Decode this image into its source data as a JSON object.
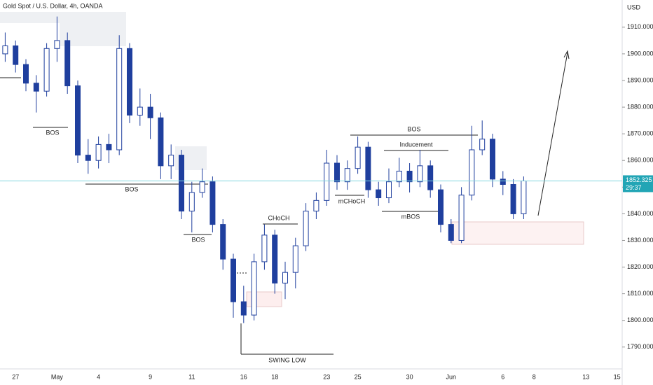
{
  "chart_data": {
    "type": "candlestick",
    "title": "Gold Spot / U.S. Dollar, 4h, OANDA",
    "y_axis_label": "USD",
    "countdown": "29:37",
    "categories": [
      null,
      "27",
      null,
      null,
      null,
      "May",
      null,
      null,
      null,
      "4",
      null,
      null,
      null,
      null,
      "9",
      null,
      null,
      null,
      "11",
      null,
      null,
      null,
      null,
      "16",
      null,
      null,
      "18",
      null,
      null,
      null,
      null,
      "23",
      null,
      null,
      "25",
      null,
      null,
      null,
      null,
      "30",
      null,
      null,
      null,
      "Jun",
      null,
      null,
      null,
      null,
      "6",
      null,
      null,
      "8",
      null,
      null,
      null,
      null,
      "13",
      null,
      null,
      "15"
    ],
    "open": [
      1900,
      1903,
      1896,
      1889,
      1886,
      1902,
      1905,
      1888,
      1862,
      1860,
      1866,
      1864,
      1902,
      1877,
      1880,
      1876,
      1858,
      1862,
      1841,
      1848,
      1852,
      1836,
      1823,
      1807,
      1802,
      1822,
      1832,
      1814,
      1818,
      1828,
      1841,
      1845,
      1859,
      1852,
      1857,
      1865,
      1849,
      1846,
      1852,
      1856,
      1852,
      1858,
      1849,
      1836,
      1830,
      1847,
      1864,
      1868,
      1853,
      1851,
      1840,
      null,
      null,
      null,
      null,
      null,
      null,
      null,
      null,
      null
    ],
    "high": [
      1908,
      1905,
      1898,
      1892,
      1904,
      1914,
      1908,
      1890,
      1868,
      1869,
      1870,
      1907,
      1904,
      1887,
      1885,
      1878,
      1866,
      1864,
      1852,
      1857,
      1854,
      1838,
      1825,
      1813,
      1825,
      1836,
      1834,
      1822,
      1831,
      1844,
      1848,
      1864,
      1862,
      1860,
      1869,
      1867,
      1852,
      1857,
      1861,
      1859,
      1864,
      1860,
      1851,
      1838,
      1850,
      1873,
      1875,
      1870,
      1856,
      1853,
      1854,
      null,
      null,
      null,
      null,
      null,
      null,
      null,
      null,
      null
    ],
    "low": [
      1897,
      1893,
      1886,
      1878,
      1884,
      1897,
      1885,
      1859,
      1855,
      1857,
      1859,
      1862,
      1874,
      1873,
      1868,
      1853,
      1853,
      1838,
      1833,
      1846,
      1833,
      1819,
      1801,
      1799,
      1800,
      1819,
      1810,
      1808,
      1812,
      1826,
      1838,
      1843,
      1849,
      1849,
      1855,
      1846,
      1843,
      1844,
      1850,
      1848,
      1850,
      1846,
      1833,
      1829,
      1829,
      1845,
      1862,
      1850,
      1847,
      1838,
      1838,
      null,
      null,
      null,
      null,
      null,
      null,
      null,
      null,
      null
    ],
    "close": [
      1903,
      1896,
      1889,
      1886,
      1902,
      1905,
      1888,
      1862,
      1860,
      1866,
      1864,
      1902,
      1877,
      1880,
      1876,
      1858,
      1862,
      1841,
      1848,
      1852,
      1836,
      1823,
      1807,
      1802,
      1822,
      1832,
      1814,
      1818,
      1828,
      1841,
      1845,
      1859,
      1852,
      1857,
      1865,
      1849,
      1846,
      1852,
      1856,
      1852,
      1858,
      1849,
      1836,
      1830,
      1847,
      1864,
      1868,
      1853,
      1851,
      1840,
      1852.325,
      null,
      null,
      null,
      null,
      null,
      null,
      null,
      null,
      null
    ],
    "up_color": "#ffffff",
    "down_color": "#1f3f9e",
    "wick_color": "#1f3f9e",
    "price_line_color": "#7fd6dd",
    "price_tag_color": "#22a5b5",
    "ylim": [
      1781.8,
      1920.2
    ],
    "yticks": [
      {
        "value": 1790,
        "label": "1790.000"
      },
      {
        "value": 1800,
        "label": "1800.000"
      },
      {
        "value": 1810,
        "label": "1810.000"
      },
      {
        "value": 1820,
        "label": "1820.000"
      },
      {
        "value": 1830,
        "label": "1830.000"
      },
      {
        "value": 1840,
        "label": "1840.000"
      },
      {
        "value": 1850,
        "label": "1850.000"
      },
      {
        "value": 1860,
        "label": "1860.000"
      },
      {
        "value": 1870,
        "label": "1870.000"
      },
      {
        "value": 1880,
        "label": "1880.000"
      },
      {
        "value": 1890,
        "label": "1890.000"
      },
      {
        "value": 1900,
        "label": "1900.000"
      },
      {
        "value": 1910,
        "label": "1910.000"
      }
    ],
    "grid": false,
    "annotations": [
      "BOS",
      "BOS",
      "BOS",
      "CHoCH",
      "SWING LOW",
      "mCHoCH",
      "BOS",
      "Inducement",
      "mBOS"
    ]
  }
}
